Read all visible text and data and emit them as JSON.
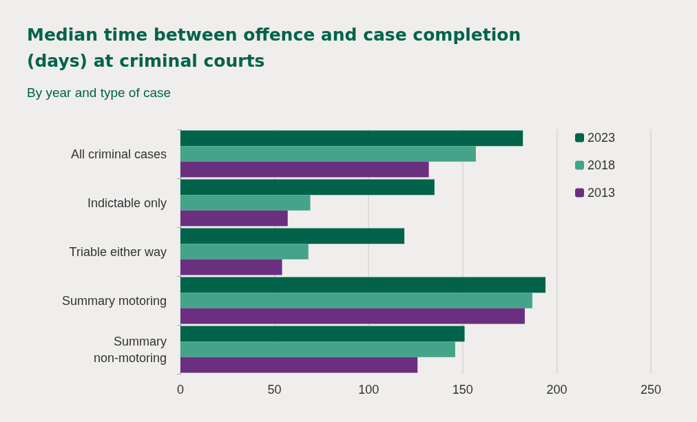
{
  "chart_data": {
    "type": "bar",
    "orientation": "horizontal",
    "title": "Median time between offence and case completion (days) at criminal courts",
    "subtitle": "By year and type of case",
    "categories": [
      "All criminal cases",
      "Indictable only",
      "Triable either way",
      "Summary motoring",
      "Summary\nnon-motoring"
    ],
    "series": [
      {
        "name": "2023",
        "color": "#00634a",
        "values": [
          182,
          135,
          119,
          194,
          151
        ]
      },
      {
        "name": "2018",
        "color": "#45a38a",
        "values": [
          157,
          69,
          68,
          187,
          146
        ]
      },
      {
        "name": "2013",
        "color": "#6b2f7f",
        "values": [
          132,
          57,
          54,
          183,
          126
        ]
      }
    ],
    "xlim": [
      0,
      250
    ],
    "xticks": [
      0,
      50,
      100,
      150,
      200,
      250
    ],
    "grid": "x",
    "legend": "top right"
  }
}
